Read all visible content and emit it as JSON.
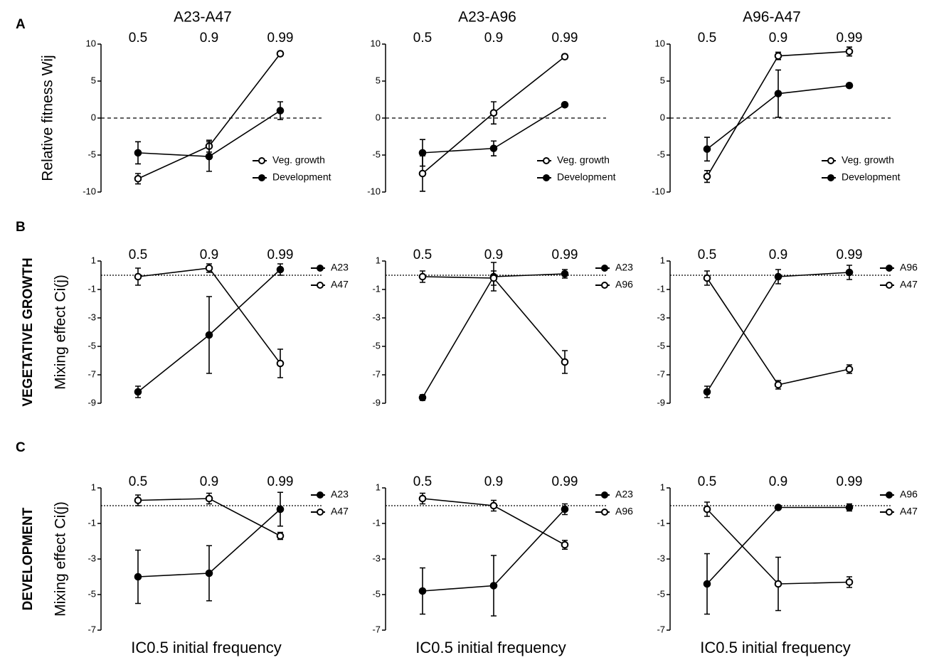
{
  "rows": [
    {
      "letter": "A",
      "ylabel": "Relative fitness Wij"
    },
    {
      "letter": "B",
      "section": "VEGETATIVE GROWTH",
      "ylabel": "Mixing effect Ci(j)"
    },
    {
      "letter": "C",
      "section": "DEVELOPMENT",
      "ylabel": "Mixing effect Ci(j)"
    }
  ],
  "chart_data": [
    {
      "type": "line",
      "title": "A23-A47",
      "categories": [
        "0.5",
        "0.9",
        "0.99"
      ],
      "ylim": [
        -10,
        10
      ],
      "yticks": [
        -10,
        -5,
        0,
        5,
        10
      ],
      "hline": 0,
      "series": [
        {
          "name": "Veg. growth",
          "color": "#000000",
          "marker": "open",
          "values": [
            -8.2,
            -3.8,
            8.7
          ],
          "errors": [
            0.7,
            0.8,
            0.3
          ]
        },
        {
          "name": "Development",
          "color": "#000000",
          "marker": "filled",
          "values": [
            -4.7,
            -5.2,
            1.0
          ],
          "errors": [
            1.5,
            2.0,
            1.2
          ]
        }
      ]
    },
    {
      "type": "line",
      "title": "A23-A96",
      "categories": [
        "0.5",
        "0.9",
        "0.99"
      ],
      "ylim": [
        -10,
        10
      ],
      "yticks": [
        -10,
        -5,
        0,
        5,
        10
      ],
      "hline": 0,
      "series": [
        {
          "name": "Veg. growth",
          "color": "#000000",
          "marker": "open",
          "values": [
            -7.5,
            0.7,
            8.3
          ],
          "errors": [
            2.4,
            1.5,
            0.3
          ]
        },
        {
          "name": "Development",
          "color": "#000000",
          "marker": "filled",
          "values": [
            -4.7,
            -4.1,
            1.8
          ],
          "errors": [
            1.8,
            1.0,
            0.2
          ]
        }
      ]
    },
    {
      "type": "line",
      "title": "A96-A47",
      "categories": [
        "0.5",
        "0.9",
        "0.99"
      ],
      "ylim": [
        -10,
        10
      ],
      "yticks": [
        -10,
        -5,
        0,
        5,
        10
      ],
      "hline": 0,
      "series": [
        {
          "name": "Veg. growth",
          "color": "#000000",
          "marker": "open",
          "values": [
            -7.9,
            8.4,
            9.0
          ],
          "errors": [
            0.8,
            0.5,
            0.6
          ]
        },
        {
          "name": "Development",
          "color": "#000000",
          "marker": "filled",
          "values": [
            -4.2,
            3.3,
            4.4
          ],
          "errors": [
            1.6,
            3.2,
            0.2
          ]
        }
      ]
    },
    {
      "type": "line",
      "categories": [
        "0.5",
        "0.9",
        "0.99"
      ],
      "ylim": [
        -9,
        1
      ],
      "yticks": [
        1,
        -1,
        -3,
        -5,
        -7,
        -9
      ],
      "hline": 0,
      "series": [
        {
          "name": "A23",
          "color": "#000000",
          "marker": "filled",
          "values": [
            -8.2,
            -4.2,
            0.4
          ],
          "errors": [
            0.4,
            2.7,
            0.4
          ]
        },
        {
          "name": "A47",
          "color": "#000000",
          "marker": "open",
          "values": [
            -0.1,
            0.5,
            -6.2
          ],
          "errors": [
            0.6,
            0.3,
            1.0
          ]
        }
      ]
    },
    {
      "type": "line",
      "categories": [
        "0.5",
        "0.9",
        "0.99"
      ],
      "ylim": [
        -9,
        1
      ],
      "yticks": [
        1,
        -1,
        -3,
        -5,
        -7,
        -9
      ],
      "hline": 0,
      "series": [
        {
          "name": "A23",
          "color": "#000000",
          "marker": "filled",
          "values": [
            -8.6,
            -0.1,
            0.1
          ],
          "errors": [
            0.2,
            1.0,
            0.3
          ]
        },
        {
          "name": "A96",
          "color": "#000000",
          "marker": "open",
          "values": [
            -0.1,
            -0.2,
            -6.1
          ],
          "errors": [
            0.4,
            0.5,
            0.8
          ]
        }
      ]
    },
    {
      "type": "line",
      "categories": [
        "0.5",
        "0.9",
        "0.99"
      ],
      "ylim": [
        -9,
        1
      ],
      "yticks": [
        1,
        -1,
        -3,
        -5,
        -7,
        -9
      ],
      "hline": 0,
      "series": [
        {
          "name": "A96",
          "color": "#000000",
          "marker": "filled",
          "values": [
            -8.2,
            -0.1,
            0.2
          ],
          "errors": [
            0.4,
            0.5,
            0.5
          ]
        },
        {
          "name": "A47",
          "color": "#000000",
          "marker": "open",
          "values": [
            -0.2,
            -7.7,
            -6.6
          ],
          "errors": [
            0.5,
            0.3,
            0.3
          ]
        }
      ]
    },
    {
      "type": "line",
      "xlabel": "IC0.5 initial frequency",
      "categories": [
        "0.5",
        "0.9",
        "0.99"
      ],
      "ylim": [
        -7,
        1
      ],
      "yticks": [
        1,
        -1,
        -3,
        -5,
        -7
      ],
      "hline": 0,
      "series": [
        {
          "name": "A23",
          "color": "#000000",
          "marker": "filled",
          "values": [
            -4.0,
            -3.8,
            -0.2
          ],
          "errors": [
            1.5,
            1.55,
            0.95
          ]
        },
        {
          "name": "A47",
          "color": "#000000",
          "marker": "open",
          "values": [
            0.3,
            0.4,
            -1.7
          ],
          "errors": [
            0.3,
            0.3,
            0.2
          ]
        }
      ]
    },
    {
      "type": "line",
      "xlabel": "IC0.5 initial frequency",
      "categories": [
        "0.5",
        "0.9",
        "0.99"
      ],
      "ylim": [
        -7,
        1
      ],
      "yticks": [
        1,
        -1,
        -3,
        -5,
        -7
      ],
      "hline": 0,
      "series": [
        {
          "name": "A23",
          "color": "#000000",
          "marker": "filled",
          "values": [
            -4.8,
            -4.5,
            -0.2
          ],
          "errors": [
            1.3,
            1.7,
            0.3
          ]
        },
        {
          "name": "A96",
          "color": "#000000",
          "marker": "open",
          "values": [
            0.4,
            0.0,
            -2.2
          ],
          "errors": [
            0.3,
            0.3,
            0.25
          ]
        }
      ]
    },
    {
      "type": "line",
      "xlabel": "IC0.5 initial frequency",
      "categories": [
        "0.5",
        "0.9",
        "0.99"
      ],
      "ylim": [
        -7,
        1
      ],
      "yticks": [
        1,
        -1,
        -3,
        -5,
        -7
      ],
      "hline": 0,
      "series": [
        {
          "name": "A96",
          "color": "#000000",
          "marker": "filled",
          "values": [
            -4.4,
            -0.1,
            -0.1
          ],
          "errors": [
            1.7,
            0.1,
            0.2
          ]
        },
        {
          "name": "A47",
          "color": "#000000",
          "marker": "open",
          "values": [
            -0.2,
            -4.4,
            -4.3
          ],
          "errors": [
            0.4,
            1.5,
            0.3
          ]
        }
      ]
    }
  ]
}
